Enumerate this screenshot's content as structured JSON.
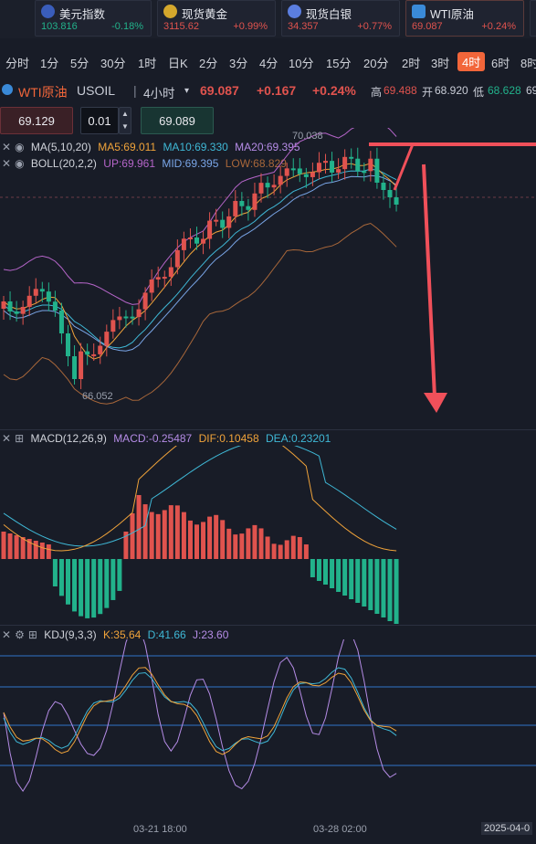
{
  "tickers": [
    {
      "name": "美元指数",
      "price": "103.816",
      "change": "-0.18%",
      "icon": "us-flag-icon",
      "color": "#22b28b"
    },
    {
      "name": "现货黄金",
      "price": "3115.62",
      "change": "+0.99%",
      "icon": "gold-icon",
      "color": "#e0534e"
    },
    {
      "name": "现货白银",
      "price": "34.357",
      "change": "+0.77%",
      "icon": "silver-icon",
      "color": "#e0534e"
    },
    {
      "name": "WTI原油",
      "price": "69.087",
      "change": "+0.24%",
      "icon": "oil-icon",
      "color": "#e0534e"
    }
  ],
  "timeframes": [
    "分时",
    "1分",
    "5分",
    "30分",
    "1时",
    "日K",
    "2分",
    "3分",
    "4分",
    "10分",
    "15分",
    "20分",
    "2时",
    "3时",
    "4时",
    "6时",
    "8时"
  ],
  "active_timeframe": "4时",
  "symbol": {
    "name": "WTI原油",
    "code": "USOIL",
    "period": "4小时",
    "price": "69.087",
    "change": "+0.167",
    "pct": "+0.24%",
    "high_label": "高",
    "high": "69.488",
    "open_label": "开",
    "open": "68.920",
    "low_label": "低",
    "low": "68.628",
    "last": "69"
  },
  "order": {
    "sell_price": "69.129",
    "lots": "0.01",
    "buy_price": "69.089"
  },
  "ma_indicator": {
    "name": "MA(5,10,20)",
    "ma5": "MA5:69.011",
    "ma10": "MA10:69.330",
    "ma20": "MA20:69.395"
  },
  "boll_indicator": {
    "name": "BOLL(20,2,2)",
    "up": "UP:69.961",
    "mid": "MID:69.395",
    "low": "LOW:68.829"
  },
  "price_marks": {
    "high": "70.038",
    "low": "66.052"
  },
  "macd_indicator": {
    "name": "MACD(12,26,9)",
    "macd": "MACD:-0.25487",
    "dif": "DIF:0.10458",
    "dea": "DEA:0.23201"
  },
  "kdj_indicator": {
    "name": "KDJ(9,3,3)",
    "k": "K:35.64",
    "d": "D:41.66",
    "j": "J:23.60"
  },
  "x_axis": {
    "t1": "03-21 18:00",
    "t2": "03-28 02:00",
    "t3": "2025-04-0"
  },
  "colors": {
    "up": "#e0534e",
    "down": "#22b28b",
    "ma5": "#f0a33a",
    "ma10": "#3fb8d6",
    "ma20": "#b58ce6",
    "boll_up": "#b565c9",
    "boll_mid": "#7aa6e8",
    "boll_low": "#a8673a",
    "annotation": "#f0505a",
    "accent": "#f2663a"
  }
}
